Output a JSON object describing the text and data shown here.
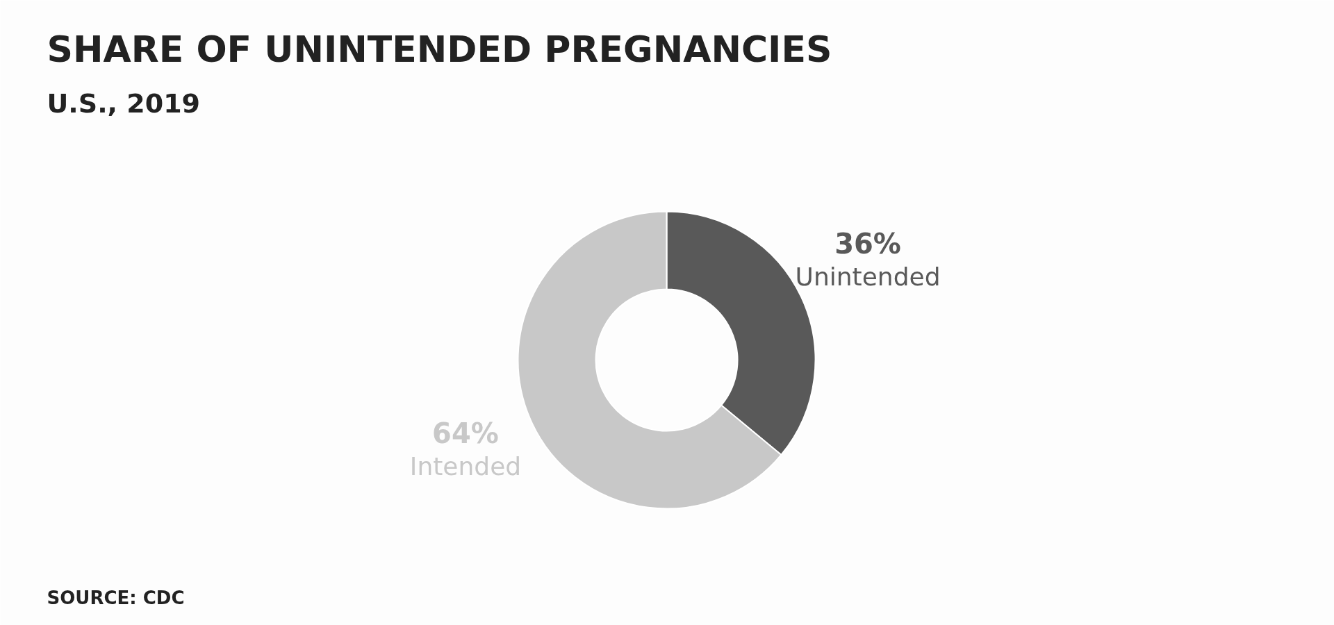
{
  "chart_data": {
    "type": "donut",
    "title": "SHARE OF UNINTENDED PREGNANCIES",
    "subtitle": "U.S., 2019",
    "categories": [
      "Unintended",
      "Intended"
    ],
    "values": [
      36,
      64
    ],
    "colors": [
      "#595959",
      "#c8c8c8"
    ],
    "value_labels": [
      "36%",
      "64%"
    ],
    "annotations": [
      "SOURCE: CDC"
    ]
  }
}
